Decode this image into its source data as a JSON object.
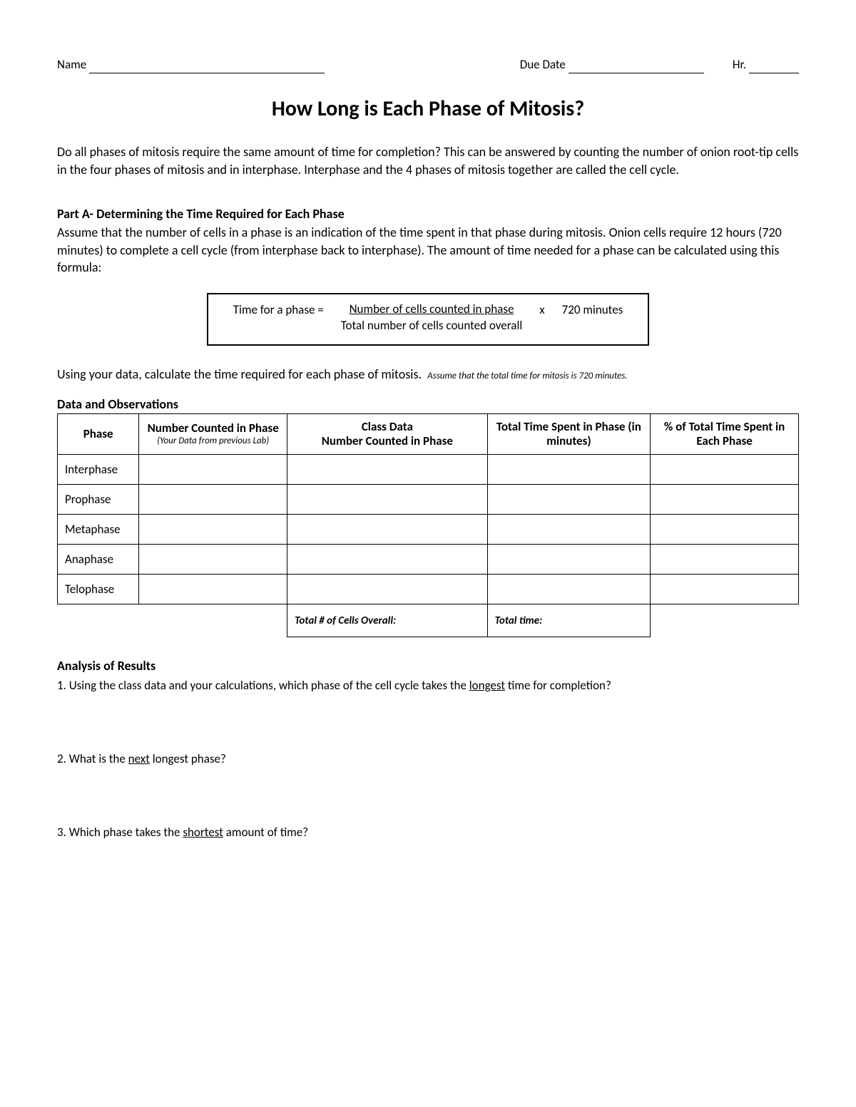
{
  "header": {
    "name_label": "Name",
    "name_blank_width": 330,
    "due_label": "Due Date",
    "due_blank_width": 190,
    "hr_label": "Hr.",
    "hr_blank_width": 70
  },
  "title": "How Long is Each Phase of Mitosis?",
  "intro": "Do all phases of mitosis require the same amount of time for completion?  This can be answered by counting the number of onion root-tip cells in the four phases of mitosis and in interphase. Interphase and the 4 phases of mitosis together are called the cell cycle.",
  "partA": {
    "heading": "Part A- Determining the Time Required for Each Phase",
    "text": "Assume that the number of cells in a phase is an indication of the time spent in that phase during mitosis.  Onion cells require 12 hours (720 minutes) to complete a cell cycle (from interphase back to interphase).  The amount of time needed for a phase can be calculated using this formula:"
  },
  "formula": {
    "lhs": "Time for a phase =",
    "numerator": "Number of cells counted in phase",
    "denominator": "Total number of cells counted overall",
    "times": "x",
    "rhs": "720 minutes"
  },
  "instruct": "Using your data, calculate the time required for each phase of mitosis.",
  "assume": "Assume that the total time for mitosis is 720 minutes.",
  "data_heading": "Data and Observations",
  "table": {
    "columns": [
      {
        "label": "Phase",
        "width": "11%"
      },
      {
        "label": "Number Counted in Phase",
        "sub": "(Your Data from previous Lab)",
        "width": "20%"
      },
      {
        "label": "Class Data\nNumber Counted in Phase",
        "width": "27%"
      },
      {
        "label": "Total Time Spent in Phase (in minutes)",
        "width": "22%"
      },
      {
        "label": "% of Total Time Spent in Each Phase",
        "width": "20%"
      }
    ],
    "rows": [
      "Interphase",
      "Prophase",
      "Metaphase",
      "Anaphase",
      "Telophase"
    ],
    "total_cells_label": "Total # of Cells Overall:",
    "total_time_label": "Total time:"
  },
  "analysis": {
    "heading": "Analysis of Results",
    "q1_pre": "1.  Using the class data and your calculations, which phase of the cell cycle takes the ",
    "q1_u": "longest",
    "q1_post": " time for completion?",
    "q2_pre": "2.  What is the ",
    "q2_u": "next",
    "q2_post": " longest phase?",
    "q3_pre": "3.  Which phase takes the ",
    "q3_u": "shortest",
    "q3_post": " amount of time?"
  }
}
